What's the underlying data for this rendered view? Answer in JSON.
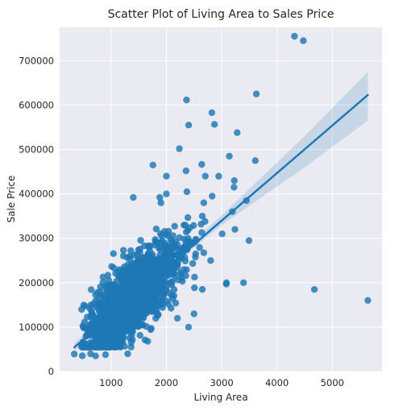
{
  "chart_data": {
    "type": "scatter",
    "title": "Scatter Plot of Living Area to Sales Price",
    "xlabel": "Living Area",
    "ylabel": "Sale Price",
    "xlim": [
      70,
      5900
    ],
    "ylim": [
      0,
      775000
    ],
    "xticks": [
      1000,
      2000,
      3000,
      4000,
      5000
    ],
    "xtick_labels": [
      "1000",
      "2000",
      "3000",
      "4000",
      "5000"
    ],
    "yticks": [
      0,
      100000,
      200000,
      300000,
      400000,
      500000,
      600000,
      700000
    ],
    "ytick_labels": [
      "0",
      "100000",
      "200000",
      "300000",
      "400000",
      "500000",
      "600000",
      "700000"
    ],
    "grid": true,
    "style": "seaborn-darkgrid",
    "colors": {
      "background": "#eaeaf2",
      "grid": "#ffffff",
      "points": "#1f77b4",
      "band": "#1f77b4"
    },
    "point_count": 1460,
    "regression": {
      "x_range": [
        334,
        5642
      ],
      "intercept": 18570,
      "slope": 107.1,
      "ci": [
        {
          "x": 334,
          "lower": 45000,
          "upper": 65000
        },
        {
          "x": 1500,
          "lower": 176000,
          "upper": 184000
        },
        {
          "x": 3000,
          "lower": 330000,
          "upper": 352000
        },
        {
          "x": 4500,
          "lower": 460000,
          "upper": 530000
        },
        {
          "x": 5642,
          "lower": 565000,
          "upper": 675000
        }
      ]
    },
    "outliers": [
      {
        "x": 4316,
        "y": 755000
      },
      {
        "x": 4476,
        "y": 745000
      },
      {
        "x": 2364,
        "y": 611657
      },
      {
        "x": 3627,
        "y": 625000
      },
      {
        "x": 2822,
        "y": 582933
      },
      {
        "x": 2868,
        "y": 556581
      },
      {
        "x": 2402,
        "y": 555000
      },
      {
        "x": 3279,
        "y": 538000
      },
      {
        "x": 2234,
        "y": 501837
      },
      {
        "x": 3138,
        "y": 485000
      },
      {
        "x": 3608,
        "y": 475000
      },
      {
        "x": 4676,
        "y": 184750
      },
      {
        "x": 5642,
        "y": 160000
      },
      {
        "x": 3493,
        "y": 295000
      },
      {
        "x": 3395,
        "y": 200000
      },
      {
        "x": 3086,
        "y": 200000
      },
      {
        "x": 3082,
        "y": 197000
      },
      {
        "x": 3228,
        "y": 430000
      },
      {
        "x": 3222,
        "y": 415000
      },
      {
        "x": 3447,
        "y": 385000
      },
      {
        "x": 3194,
        "y": 360000
      },
      {
        "x": 3238,
        "y": 320000
      },
      {
        "x": 2945,
        "y": 440000
      },
      {
        "x": 2704,
        "y": 440000
      },
      {
        "x": 2640,
        "y": 466500
      },
      {
        "x": 2356,
        "y": 452000
      },
      {
        "x": 2000,
        "y": 440000
      },
      {
        "x": 1756,
        "y": 465000
      },
      {
        "x": 2828,
        "y": 395000
      },
      {
        "x": 3009,
        "y": 310000
      },
      {
        "x": 334,
        "y": 39300
      },
      {
        "x": 480,
        "y": 35311
      },
      {
        "x": 630,
        "y": 40000
      },
      {
        "x": 720,
        "y": 35000
      },
      {
        "x": 900,
        "y": 37900
      },
      {
        "x": 1300,
        "y": 40000
      },
      {
        "x": 1020,
        "y": 60000
      },
      {
        "x": 960,
        "y": 55000
      },
      {
        "x": 2400,
        "y": 100000
      },
      {
        "x": 2200,
        "y": 120000
      },
      {
        "x": 2500,
        "y": 130000
      },
      {
        "x": 2650,
        "y": 185000
      },
      {
        "x": 2800,
        "y": 250000
      },
      {
        "x": 2700,
        "y": 338000
      },
      {
        "x": 2650,
        "y": 350000
      },
      {
        "x": 2370,
        "y": 405000
      },
      {
        "x": 1400,
        "y": 392000
      },
      {
        "x": 1880,
        "y": 392000
      },
      {
        "x": 2000,
        "y": 400000
      },
      {
        "x": 1900,
        "y": 380000
      }
    ]
  }
}
